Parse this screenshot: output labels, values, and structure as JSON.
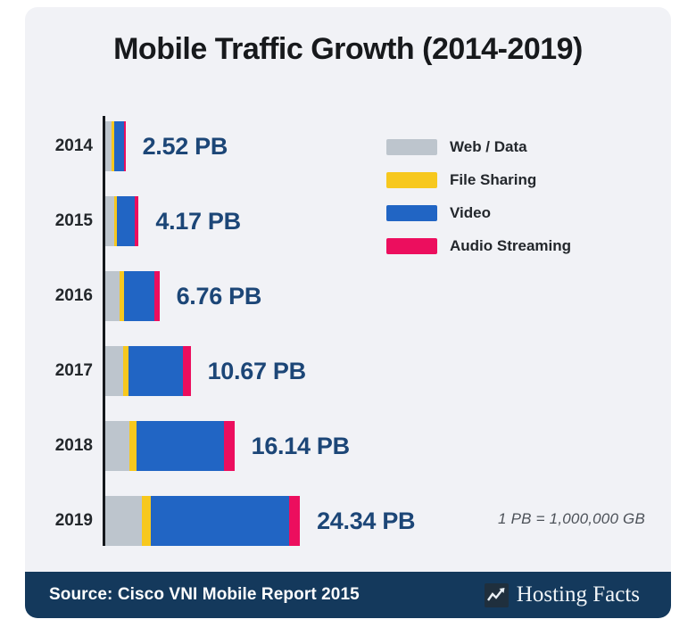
{
  "title": "Mobile Traffic Growth (2014-2019)",
  "chart_data": {
    "type": "bar",
    "orientation": "horizontal",
    "title": "Mobile Traffic Growth (2014-2019)",
    "unit": "PB",
    "categories": [
      "2014",
      "2015",
      "2016",
      "2017",
      "2018",
      "2019"
    ],
    "totals_pb": [
      2.52,
      4.17,
      6.76,
      10.67,
      16.14,
      24.34
    ],
    "value_labels": [
      "2.52 PB",
      "4.17 PB",
      "6.76 PB",
      "10.67 PB",
      "16.14 PB",
      "24.34 PB"
    ],
    "series": [
      {
        "name": "Web / Data",
        "color": "#bdc5cd",
        "fractions": [
          0.32,
          0.26,
          0.27,
          0.21,
          0.19,
          0.19
        ],
        "values_pb": [
          0.81,
          1.08,
          1.83,
          2.24,
          3.07,
          4.62
        ]
      },
      {
        "name": "File Sharing",
        "color": "#f7c81e",
        "fractions": [
          0.13,
          0.1,
          0.07,
          0.06,
          0.055,
          0.042
        ],
        "values_pb": [
          0.33,
          0.42,
          0.47,
          0.64,
          0.89,
          1.02
        ]
      },
      {
        "name": "Video",
        "color": "#2165c4",
        "fractions": [
          0.46,
          0.52,
          0.57,
          0.64,
          0.675,
          0.712
        ],
        "values_pb": [
          1.16,
          2.17,
          3.85,
          6.83,
          10.89,
          17.33
        ]
      },
      {
        "name": "Audio Streaming",
        "color": "#ec0e5e",
        "fractions": [
          0.09,
          0.12,
          0.09,
          0.09,
          0.08,
          0.056
        ],
        "values_pb": [
          0.23,
          0.5,
          0.61,
          0.96,
          1.29,
          1.36
        ]
      }
    ],
    "x_axis_range_pb": [
      0,
      24.34
    ],
    "grid": false,
    "legend_position": "upper right",
    "note": "1 PB = 1,000,000 GB"
  },
  "footer": {
    "source": "Source: Cisco VNI Mobile Report 2015",
    "brand": "Hosting Facts"
  },
  "colors": {
    "card_background": "#f1f2f6",
    "title_text": "#17191c",
    "value_text": "#1c4677",
    "axis": "#15181c",
    "footnote_text": "#4d5259",
    "footer_background": "#14395c",
    "footer_text": "#ffffff"
  }
}
